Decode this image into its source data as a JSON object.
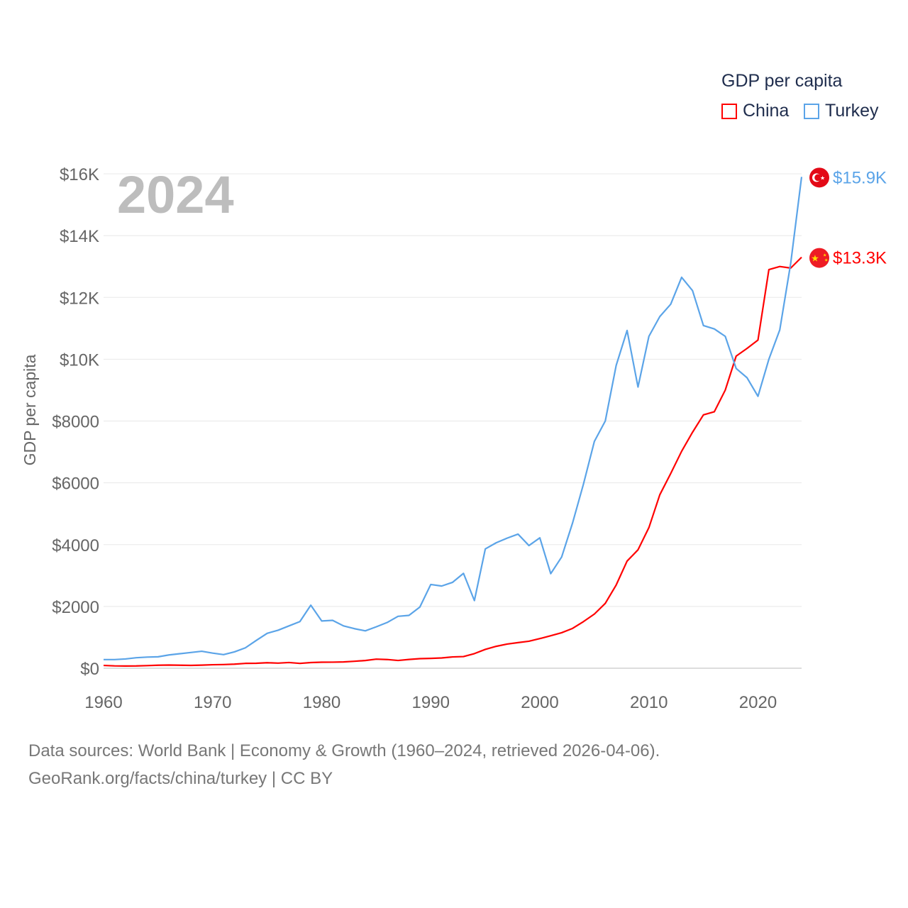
{
  "chart_data": {
    "type": "line",
    "title": "GDP per capita",
    "ylabel": "GDP per capita",
    "xlabel": "",
    "year_label": "2024",
    "xlim": [
      1960,
      2024
    ],
    "ylim": [
      0,
      16000
    ],
    "grid": true,
    "legend_placement": "top-right",
    "x_ticks": [
      1960,
      1970,
      1980,
      1990,
      2000,
      2010,
      2020
    ],
    "x_tick_labels": [
      "1960",
      "1970",
      "1980",
      "1990",
      "2000",
      "2010",
      "2020"
    ],
    "y_ticks": [
      0,
      2000,
      4000,
      6000,
      8000,
      10000,
      12000,
      14000,
      16000
    ],
    "y_tick_labels": [
      "$0",
      "$2000",
      "$4000",
      "$6000",
      "$8000",
      "$10K",
      "$12K",
      "$14K",
      "$16K"
    ],
    "x": [
      1960,
      1961,
      1962,
      1963,
      1964,
      1965,
      1966,
      1967,
      1968,
      1969,
      1970,
      1971,
      1972,
      1973,
      1974,
      1975,
      1976,
      1977,
      1978,
      1979,
      1980,
      1981,
      1982,
      1983,
      1984,
      1985,
      1986,
      1987,
      1988,
      1989,
      1990,
      1991,
      1992,
      1993,
      1994,
      1995,
      1996,
      1997,
      1998,
      1999,
      2000,
      2001,
      2002,
      2003,
      2004,
      2005,
      2006,
      2007,
      2008,
      2009,
      2010,
      2011,
      2012,
      2013,
      2014,
      2015,
      2016,
      2017,
      2018,
      2019,
      2020,
      2021,
      2022,
      2023,
      2024
    ],
    "series": [
      {
        "name": "China",
        "color": "#ff0000",
        "end_label": "$13.3K",
        "flag": "china-flag",
        "values": [
          90,
          76,
          71,
          74,
          85,
          98,
          104,
          97,
          91,
          100,
          113,
          119,
          132,
          157,
          160,
          178,
          165,
          185,
          156,
          183,
          195,
          197,
          203,
          225,
          250,
          294,
          282,
          251,
          284,
          310,
          318,
          333,
          366,
          377,
          473,
          610,
          709,
          782,
          829,
          873,
          959,
          1053,
          1149,
          1289,
          1509,
          1753,
          2099,
          2694,
          3468,
          3832,
          4550,
          5614,
          6301,
          7020,
          7636,
          8200,
          8300,
          9000,
          10100,
          10350,
          10620,
          12900,
          13000,
          12950,
          13300
        ]
      },
      {
        "name": "Turkey",
        "color": "#5ba4e8",
        "end_label": "$15.9K",
        "flag": "turkey-flag",
        "values": [
          280,
          280,
          300,
          340,
          360,
          370,
          430,
          470,
          510,
          550,
          490,
          440,
          530,
          660,
          900,
          1130,
          1230,
          1370,
          1510,
          2040,
          1530,
          1550,
          1370,
          1280,
          1210,
          1340,
          1480,
          1680,
          1710,
          1980,
          2710,
          2660,
          2780,
          3070,
          2190,
          3860,
          4060,
          4210,
          4340,
          3970,
          4220,
          3060,
          3600,
          4700,
          5960,
          7340,
          8000,
          9800,
          10930,
          9100,
          10740,
          11380,
          11780,
          12650,
          12220,
          11090,
          10980,
          10740,
          9700,
          9400,
          8800,
          10000,
          10950,
          13100,
          15900
        ]
      }
    ]
  },
  "footer": {
    "line1": "Data sources: World Bank | Economy & Growth (1960–2024, retrieved 2026-04-06).",
    "line2": "GeoRank.org/facts/china/turkey | CC BY"
  }
}
